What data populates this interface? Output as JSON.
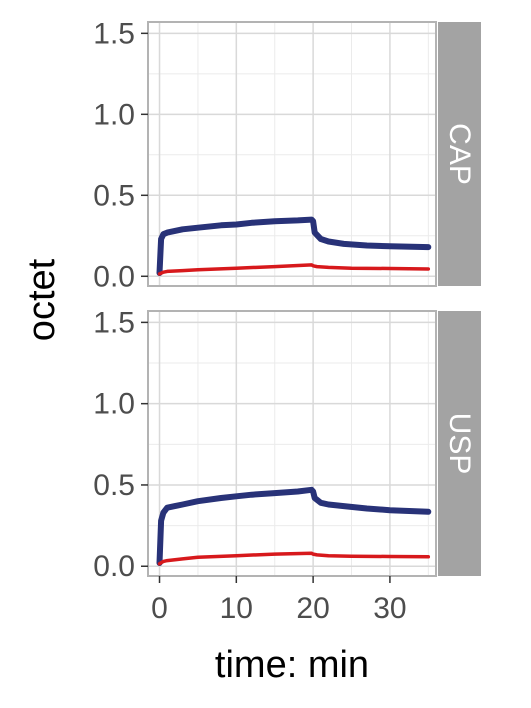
{
  "chart_data": {
    "type": "line",
    "xlabel": "time: min",
    "ylabel": "octet",
    "xlim": [
      -1.5,
      36
    ],
    "ylim": [
      -0.06,
      1.57
    ],
    "x_ticks": [
      0,
      10,
      20,
      30
    ],
    "x_tick_labels": [
      "0",
      "10",
      "20",
      "30"
    ],
    "y_ticks": [
      0.0,
      0.5,
      1.0,
      1.5
    ],
    "y_tick_labels": [
      "0.0",
      "0.5",
      "1.0",
      "1.5"
    ],
    "grid": true,
    "legend": "none",
    "colors": {
      "series_1": "#283278",
      "series_2": "#d7191c",
      "strip": "#a3a3a3",
      "grid": "#d9d9d9",
      "border": "#b3b3b3"
    },
    "panels": [
      {
        "label": "CAP",
        "series": [
          {
            "color": "#283278",
            "x": [
              0,
              0.2,
              0.5,
              1,
              2,
              3,
              5,
              8,
              10,
              12,
              15,
              18,
              19.8,
              20,
              20.2,
              21,
              22,
              24,
              27,
              30,
              35
            ],
            "y": [
              0.02,
              0.23,
              0.26,
              0.27,
              0.28,
              0.29,
              0.3,
              0.315,
              0.32,
              0.33,
              0.34,
              0.345,
              0.35,
              0.34,
              0.27,
              0.23,
              0.215,
              0.2,
              0.19,
              0.185,
              0.18
            ]
          },
          {
            "color": "#d7191c",
            "x": [
              0,
              0.5,
              1,
              3,
              5,
              10,
              15,
              19.8,
              20,
              20.5,
              22,
              25,
              30,
              35
            ],
            "y": [
              0.015,
              0.025,
              0.03,
              0.035,
              0.04,
              0.05,
              0.06,
              0.07,
              0.065,
              0.06,
              0.055,
              0.05,
              0.048,
              0.045
            ]
          }
        ]
      },
      {
        "label": "USP",
        "series": [
          {
            "color": "#283278",
            "x": [
              0,
              0.2,
              0.5,
              1,
              2,
              3,
              5,
              8,
              10,
              12,
              15,
              18,
              19.8,
              20,
              20.2,
              21,
              22,
              24,
              27,
              30,
              35
            ],
            "y": [
              0.02,
              0.28,
              0.33,
              0.36,
              0.37,
              0.38,
              0.4,
              0.42,
              0.43,
              0.44,
              0.45,
              0.46,
              0.47,
              0.46,
              0.42,
              0.39,
              0.38,
              0.37,
              0.355,
              0.345,
              0.335
            ]
          },
          {
            "color": "#d7191c",
            "x": [
              0,
              0.5,
              1,
              3,
              5,
              10,
              15,
              19.8,
              20,
              20.5,
              22,
              25,
              30,
              35
            ],
            "y": [
              0.015,
              0.03,
              0.035,
              0.045,
              0.055,
              0.065,
              0.075,
              0.08,
              0.075,
              0.07,
              0.065,
              0.062,
              0.06,
              0.058
            ]
          }
        ]
      }
    ]
  }
}
